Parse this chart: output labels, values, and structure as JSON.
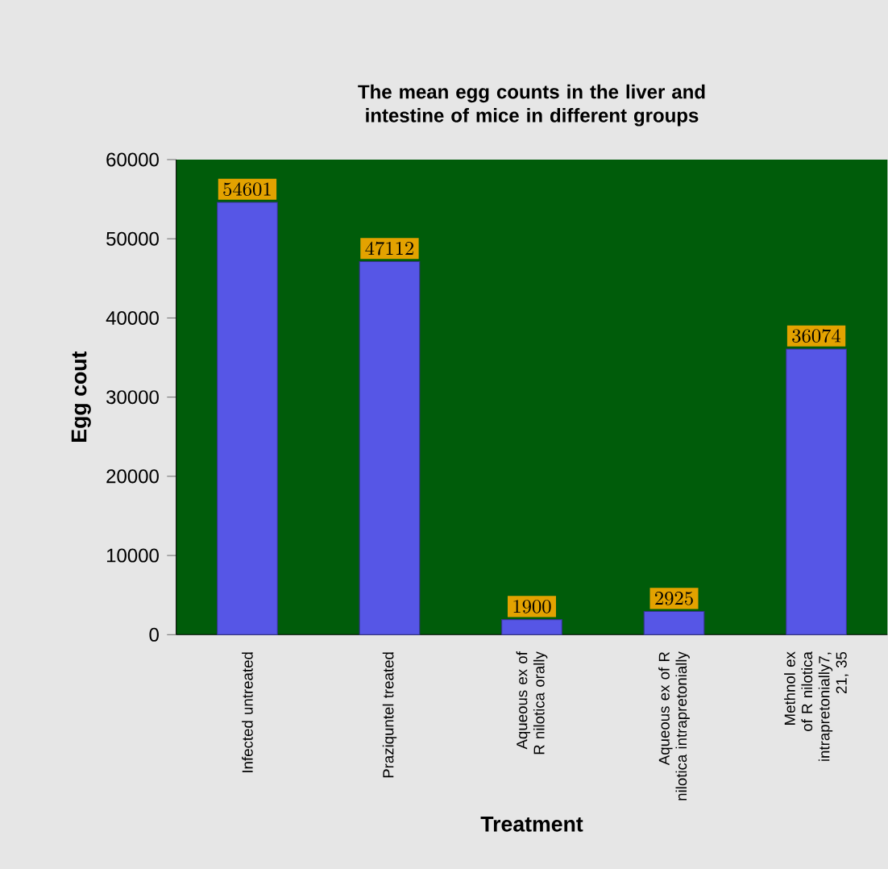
{
  "chart_data": {
    "type": "bar",
    "title": "The mean egg counts in the liver and intestine of mice in different groups",
    "xlabel": "Treatment",
    "ylabel": "Egg cout",
    "categories": [
      "Infected untreated",
      "Praziquntel treated",
      "Aqueous ex of R nilotica orally",
      "Aqueous ex of R nilotica intrapretonially",
      "Methnol ex of R nilotica intrapretonially7, 21, 35"
    ],
    "values": [
      54601,
      47112,
      1900,
      2925,
      36074
    ],
    "color": "#5656e6",
    "ylim": [
      0,
      60000
    ],
    "yticks": [
      0,
      10000,
      20000,
      30000,
      40000,
      50000,
      60000
    ],
    "data_labels": true,
    "grid": false
  }
}
